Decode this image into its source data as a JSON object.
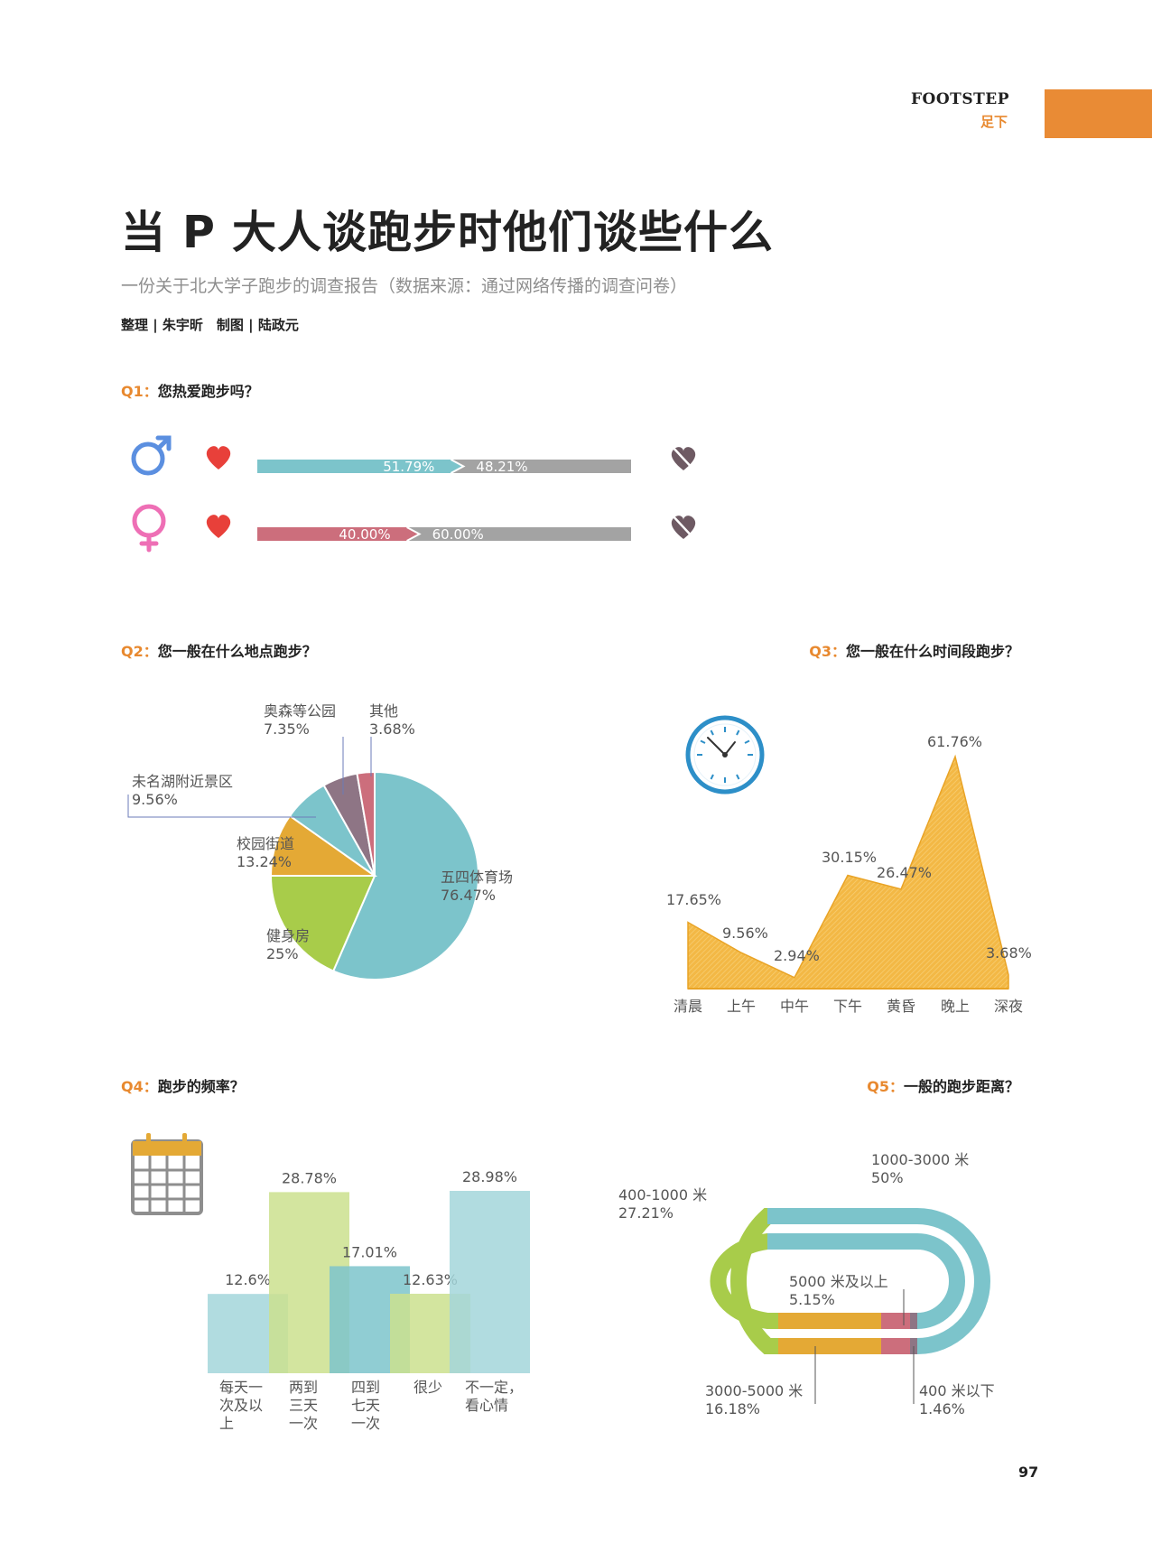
{
  "header": {
    "section_en": "FOOTSTEP",
    "section_cn": "足下",
    "accent": "#e98b35"
  },
  "article": {
    "title": "当 P 大人谈跑步时他们谈些什么",
    "subtitle": "一份关于北大学子跑步的调查报告（数据来源：通过网络传播的调查问卷）",
    "credits": "整理 | 朱宇昕　制图 | 陆政元"
  },
  "questions": {
    "q1": {
      "num": "Q1：",
      "text": "您热爱跑步吗？"
    },
    "q2": {
      "num": "Q2：",
      "text": "您一般在什么地点跑步？"
    },
    "q3": {
      "num": "Q3：",
      "text": "您一般在什么时间段跑步？"
    },
    "q4": {
      "num": "Q4：",
      "text": "跑步的频率？"
    },
    "q5": {
      "num": "Q5：",
      "text": "一般的跑步距离？"
    }
  },
  "icons": {
    "male": "male-symbol-icon",
    "female": "female-symbol-icon",
    "love": "heart-icon",
    "no_love": "broken-heart-icon",
    "clock": "clock-icon",
    "calendar": "calendar-icon"
  },
  "page_number": "97",
  "chart_data": [
    {
      "id": "q1",
      "type": "bar",
      "stacked": true,
      "orientation": "horizontal",
      "categories": [
        "male",
        "female"
      ],
      "series": [
        {
          "values": [
            51.79,
            40.0
          ],
          "labels": [
            "51.79%",
            "40.00%"
          ],
          "colors": [
            "#7cc4cb",
            "#cc6e7c"
          ]
        },
        {
          "values": [
            48.21,
            60.0
          ],
          "labels": [
            "48.21%",
            "60.00%"
          ],
          "color": "#a3a3a3"
        }
      ]
    },
    {
      "id": "q2",
      "type": "pie",
      "slices": [
        {
          "label": "五四体育场",
          "pct_label": "76.47%",
          "value": 76.47,
          "color": "#7cc4cb"
        },
        {
          "label": "健身房",
          "pct_label": "25%",
          "value": 25,
          "color": "#a8cc4a"
        },
        {
          "label": "校园街道",
          "pct_label": "13.24%",
          "value": 13.24,
          "color": "#e4a935"
        },
        {
          "label": "未名湖附近景区",
          "pct_label": "9.56%",
          "value": 9.56,
          "color": "#7cc4cb"
        },
        {
          "label": "奥森等公园",
          "pct_label": "7.35%",
          "value": 7.35,
          "color": "#8e7585"
        },
        {
          "label": "其他",
          "pct_label": "3.68%",
          "value": 3.68,
          "color": "#cc6e7c"
        }
      ]
    },
    {
      "id": "q3",
      "type": "area",
      "categories": [
        "清晨",
        "上午",
        "中午",
        "下午",
        "黄昏",
        "晚上",
        "深夜"
      ],
      "values": [
        17.65,
        9.56,
        2.94,
        30.15,
        26.47,
        61.76,
        3.68
      ],
      "labels": [
        "17.65%",
        "9.56%",
        "2.94%",
        "30.15%",
        "26.47%",
        "61.76%",
        "3.68%"
      ],
      "color": "#f3b845"
    },
    {
      "id": "q4",
      "type": "bar",
      "categories": [
        "每天一次及以上",
        "两到三天一次",
        "四到七天一次",
        "很少",
        "不一定，看心情"
      ],
      "category_lines": [
        [
          "每天一",
          "次及以",
          "上"
        ],
        [
          "两到",
          "三天",
          "一次"
        ],
        [
          "四到",
          "七天",
          "一次"
        ],
        [
          "很少"
        ],
        [
          "不一定，",
          "看心情"
        ]
      ],
      "values": [
        12.6,
        28.78,
        17.01,
        12.63,
        28.98
      ],
      "labels": [
        "12.6%",
        "28.78%",
        "17.01%",
        "12.63%",
        "28.98%"
      ],
      "colors": [
        "#a3d6da",
        "#cbe08e",
        "#7cc4cb",
        "#cbe08e",
        "#a3d6da"
      ]
    },
    {
      "id": "q5",
      "type": "track",
      "slices": [
        {
          "label": "1000-3000 米",
          "pct_label": "50%",
          "value": 50,
          "color": "#7cc4cb"
        },
        {
          "label": "400-1000 米",
          "pct_label": "27.21%",
          "value": 27.21,
          "color": "#a8cc4a"
        },
        {
          "label": "3000-5000 米",
          "pct_label": "16.18%",
          "value": 16.18,
          "color": "#e4a935"
        },
        {
          "label": "5000 米及以上",
          "pct_label": "5.15%",
          "value": 5.15,
          "color": "#cc6e7c"
        },
        {
          "label": "400 米以下",
          "pct_label": "1.46%",
          "value": 1.46,
          "color": "#8e7585"
        }
      ]
    }
  ]
}
